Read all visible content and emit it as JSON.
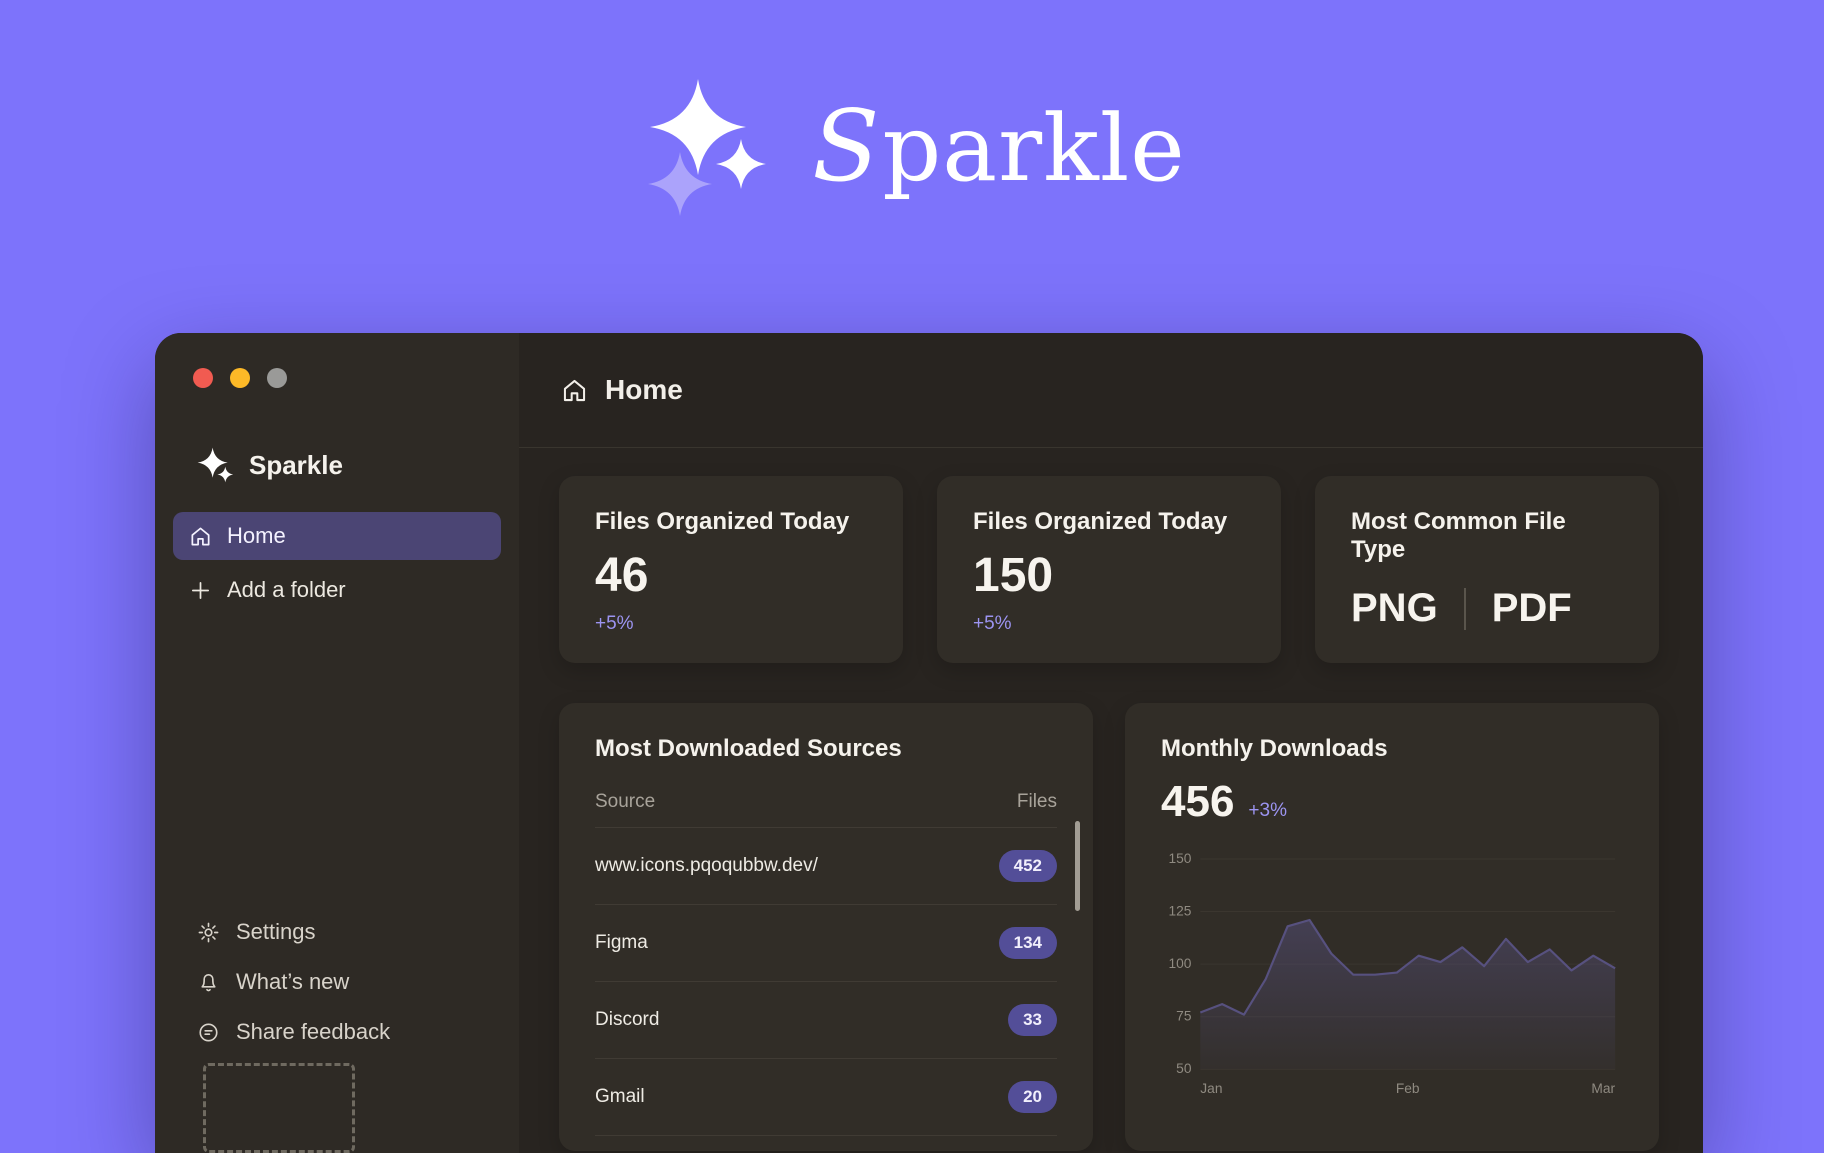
{
  "hero": {
    "brand": "Sparkle"
  },
  "window": {
    "sidebar": {
      "brand": "Sparkle",
      "nav": [
        {
          "label": "Home",
          "active": true
        },
        {
          "label": "Add a folder"
        }
      ],
      "footer": [
        {
          "label": "Settings"
        },
        {
          "label": "What’s new"
        },
        {
          "label": "Share feedback"
        }
      ]
    },
    "header": {
      "title": "Home"
    },
    "stats": [
      {
        "title": "Files Organized Today",
        "value": "46",
        "delta": "+5%"
      },
      {
        "title": "Files Organized Today",
        "value": "150",
        "delta": "+5%"
      },
      {
        "title": "Most Common File Type",
        "primary": "PNG",
        "secondary": "PDF"
      }
    ],
    "sources": {
      "title": "Most Downloaded Sources",
      "columns": {
        "source": "Source",
        "files": "Files"
      },
      "rows": [
        {
          "source": "www.icons.pqoqubbw.dev/",
          "files": "452"
        },
        {
          "source": "Figma",
          "files": "134"
        },
        {
          "source": "Discord",
          "files": "33"
        },
        {
          "source": "Gmail",
          "files": "20"
        }
      ]
    },
    "downloads": {
      "title": "Monthly Downloads",
      "value": "456",
      "delta": "+3%"
    }
  },
  "chart_data": {
    "type": "area",
    "title": "Monthly Downloads",
    "x_labels": [
      "Jan",
      "Feb",
      "Mar"
    ],
    "y_ticks": [
      150,
      125,
      100,
      75,
      50
    ],
    "ylim": [
      50,
      150
    ],
    "values": [
      77,
      81,
      76,
      93,
      118,
      121,
      105,
      95,
      95,
      96,
      104,
      101,
      108,
      99,
      112,
      101,
      107,
      97,
      104,
      98
    ],
    "line_color": "#57517f",
    "grid": true,
    "legend": false
  },
  "colors": {
    "page_bg": "#7d73fb",
    "window_bg": "#282420",
    "sidebar_bg": "#2e2a25",
    "card_bg": "#312d27",
    "accent": "#9c94f1",
    "badge_bg": "#534e98",
    "active_nav_bg": "#4b4574"
  }
}
